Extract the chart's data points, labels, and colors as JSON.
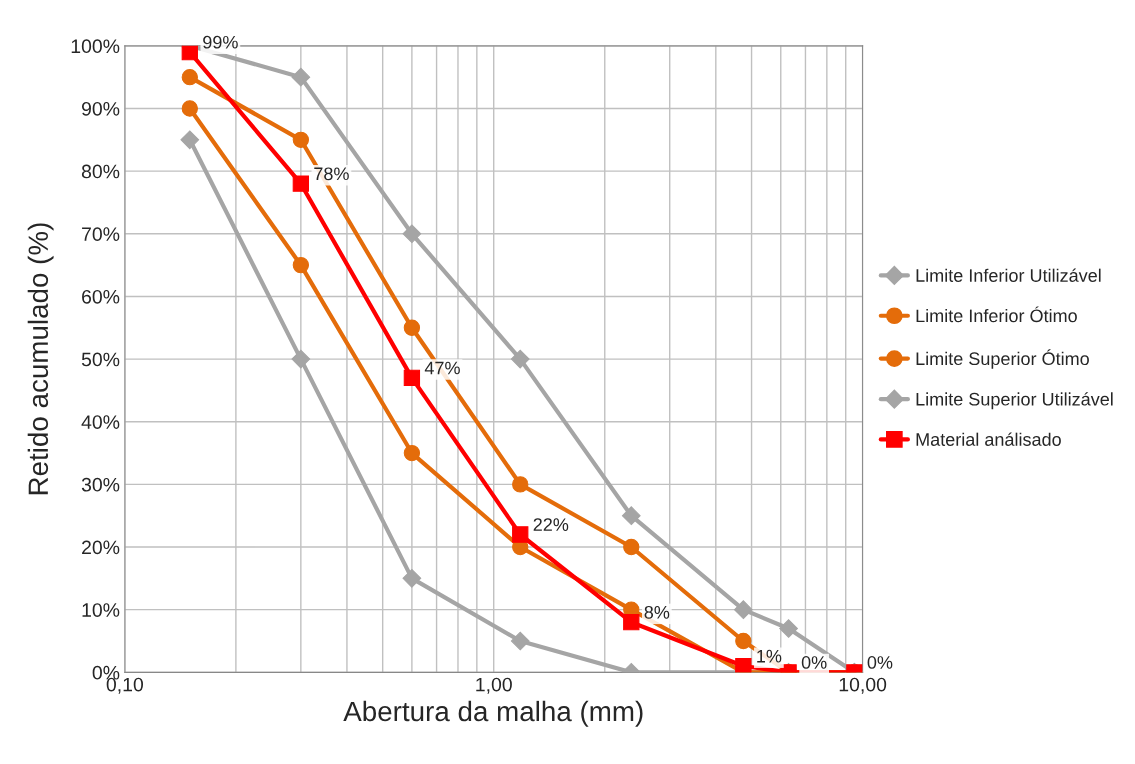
{
  "chart_data": {
    "type": "line",
    "xlabel": "Abertura da malha (mm)",
    "ylabel": "Retido acumulado (%)",
    "x": [
      0.15,
      0.3,
      0.6,
      1.18,
      2.36,
      4.75,
      6.3,
      9.5
    ],
    "series": [
      {
        "name": "Limite Inferior Utilizável",
        "color": "#a5a5a5",
        "marker": "diamond",
        "values": [
          85,
          50,
          15,
          5,
          0,
          0,
          0,
          0
        ]
      },
      {
        "name": "Limite Inferior Ótimo",
        "color": "#e46c0a",
        "marker": "circle",
        "values": [
          90,
          65,
          35,
          20,
          10,
          0,
          0,
          0
        ]
      },
      {
        "name": "Limite Superior Ótimo",
        "color": "#e46c0a",
        "marker": "circle",
        "values": [
          95,
          85,
          55,
          30,
          20,
          5,
          0,
          0
        ]
      },
      {
        "name": "Limite Superior Utilizável",
        "color": "#a5a5a5",
        "marker": "diamond",
        "values": [
          100,
          95,
          70,
          50,
          25,
          10,
          7,
          0
        ]
      },
      {
        "name": "Material análisado",
        "color": "#ff0000",
        "marker": "square",
        "values": [
          99,
          78,
          47,
          22,
          8,
          1,
          0,
          0
        ],
        "value_labels": [
          "99%",
          "78%",
          "47%",
          "22%",
          "8%",
          "1%",
          "0%",
          "0%"
        ]
      }
    ],
    "log": "x",
    "xlim": [
      0.1,
      10
    ],
    "xticks": [
      {
        "value": 0.1,
        "label": "0,10"
      },
      {
        "value": 0.2,
        "label": null
      },
      {
        "value": 0.3,
        "label": null
      },
      {
        "value": 0.4,
        "label": null
      },
      {
        "value": 0.5,
        "label": null
      },
      {
        "value": 0.6,
        "label": null
      },
      {
        "value": 0.7,
        "label": null
      },
      {
        "value": 0.8,
        "label": null
      },
      {
        "value": 0.9,
        "label": null
      },
      {
        "value": 1,
        "label": "1,00"
      },
      {
        "value": 2,
        "label": null
      },
      {
        "value": 3,
        "label": null
      },
      {
        "value": 4,
        "label": null
      },
      {
        "value": 5,
        "label": null
      },
      {
        "value": 6,
        "label": null
      },
      {
        "value": 7,
        "label": null
      },
      {
        "value": 8,
        "label": null
      },
      {
        "value": 9,
        "label": null
      },
      {
        "value": 10,
        "label": "10,00"
      }
    ],
    "ylim": [
      0,
      100
    ],
    "yticks": [
      {
        "value": 0,
        "label": "0%"
      },
      {
        "value": 10,
        "label": "10%"
      },
      {
        "value": 20,
        "label": "20%"
      },
      {
        "value": 30,
        "label": "30%"
      },
      {
        "value": 40,
        "label": "40%"
      },
      {
        "value": 50,
        "label": "50%"
      },
      {
        "value": 60,
        "label": "60%"
      },
      {
        "value": 70,
        "label": "70%"
      },
      {
        "value": 80,
        "label": "80%"
      },
      {
        "value": 90,
        "label": "90%"
      },
      {
        "value": 100,
        "label": "100%"
      }
    ],
    "grid": true,
    "legend": "right",
    "line_style": "solid"
  }
}
